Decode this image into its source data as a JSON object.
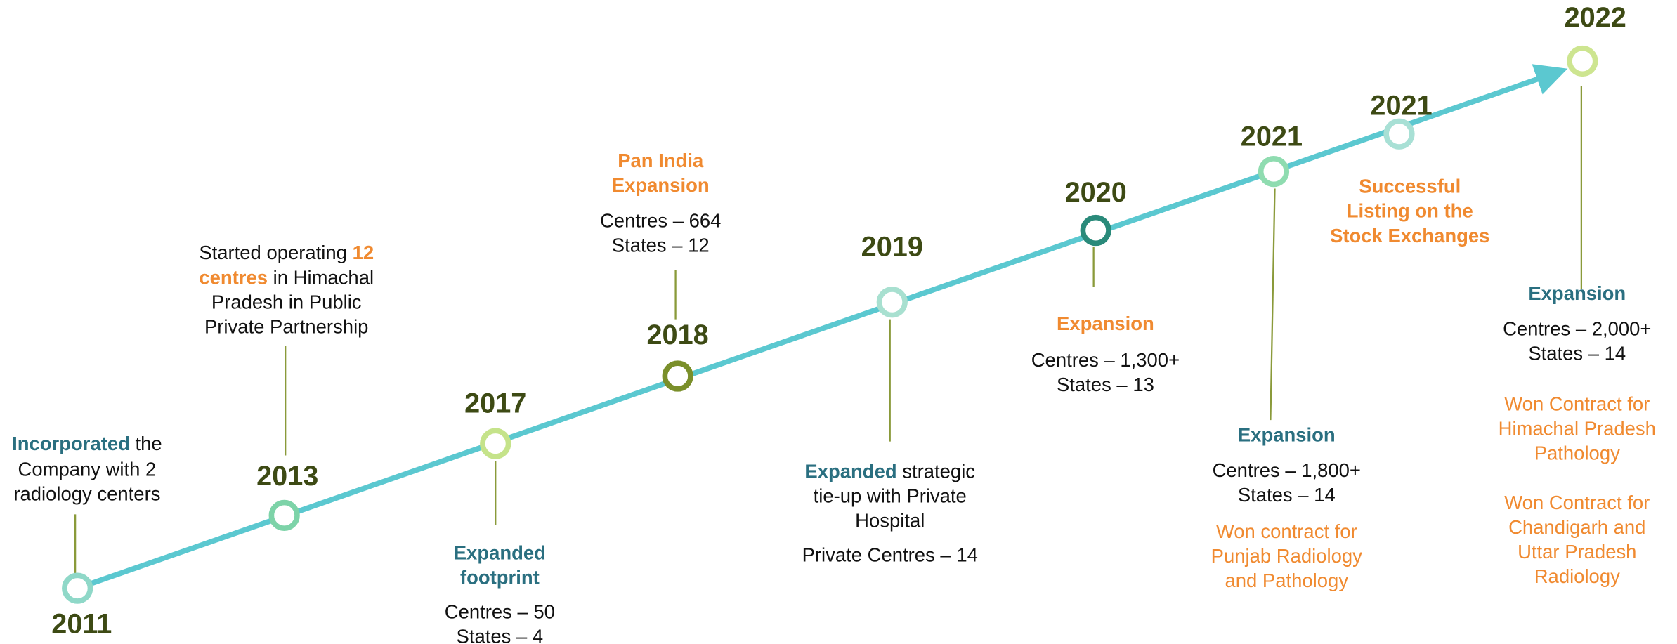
{
  "timeline": [
    {
      "year": "2011",
      "highlight": "Incorporated",
      "lines": [
        "the",
        "Company with 2",
        "radiology centers"
      ]
    },
    {
      "year": "2013",
      "highlight": [
        "12",
        "centres"
      ],
      "lines": [
        "Started operating",
        "in Himachal",
        "Pradesh in Public",
        "Private Partnership"
      ]
    },
    {
      "year": "2017",
      "heading": [
        "Expanded",
        "footprint"
      ],
      "lines": [
        "Centres – 50",
        "States –  4"
      ]
    },
    {
      "year": "2018",
      "heading": [
        "Pan India",
        "Expansion"
      ],
      "lines": [
        "Centres – 664",
        "States –  12"
      ]
    },
    {
      "year": "2019",
      "highlight": "Expanded",
      "lines": [
        "strategic",
        "tie-up with Private",
        "Hospital",
        "Private Centres – 14"
      ]
    },
    {
      "year": "2020",
      "heading": [
        "Expansion"
      ],
      "lines": [
        "Centres – 1,300+",
        "States –  13"
      ]
    },
    {
      "year": "2021",
      "heading": [
        "Expansion"
      ],
      "lines": [
        "Centres – 1,800+",
        "States – 14"
      ],
      "notes": [
        "Won contract for",
        "Punjab Radiology",
        "and Pathology"
      ]
    },
    {
      "year": "2021",
      "heading": [
        "Successful",
        "Listing on the",
        "Stock Exchanges"
      ]
    },
    {
      "year": "2022",
      "heading": [
        "Expansion"
      ],
      "lines": [
        "Centres – 2,000+",
        "States – 14"
      ],
      "notes": [
        "Won Contract for",
        "Himachal Pradesh",
        "Pathology",
        "Won Contract for",
        "Chandigarh and",
        "Uttar Pradesh",
        "Radiology"
      ]
    }
  ]
}
